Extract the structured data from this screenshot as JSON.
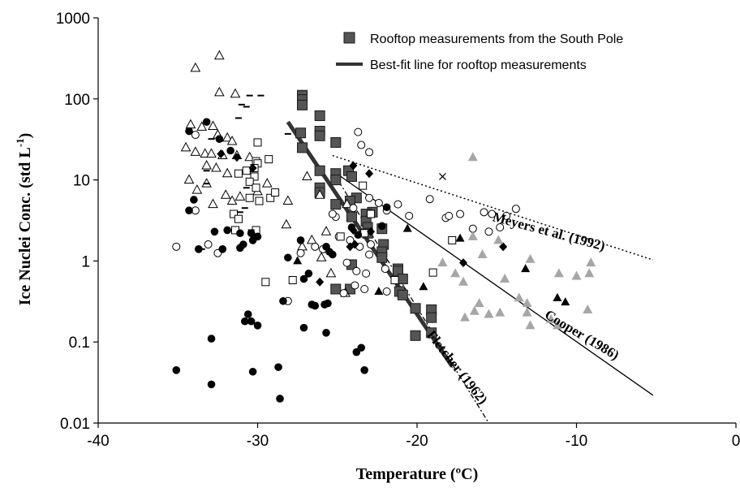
{
  "chart_data": {
    "type": "scatter",
    "xlabel": "Temperature (ºC)",
    "ylabel_main": "Ice Nuclei Conc. (std L",
    "ylabel_sup": "-1",
    "ylabel_end": ")",
    "xlim": [
      -40,
      0
    ],
    "ylim": [
      0.01,
      1000
    ],
    "y_scale": "log",
    "x_ticks": [
      {
        "value": -40,
        "label": "-40"
      },
      {
        "value": -30,
        "label": "-30"
      },
      {
        "value": -20,
        "label": "-20"
      },
      {
        "value": -10,
        "label": "-10"
      },
      {
        "value": 0,
        "label": "0"
      }
    ],
    "y_ticks": [
      {
        "value": 1000,
        "label": "1000"
      },
      {
        "value": 100,
        "label": "100"
      },
      {
        "value": 10,
        "label": "10"
      },
      {
        "value": 1,
        "label": "1"
      },
      {
        "value": 0.1,
        "label": "0.1"
      },
      {
        "value": 0.01,
        "label": "0.01"
      }
    ],
    "legend": {
      "position": "top-right",
      "entries": [
        {
          "label": "Rooftop measurements from the South Pole",
          "marker": "square"
        },
        {
          "label": "Best-fit line for rooftop measurements",
          "marker": "line"
        }
      ]
    },
    "colors": {
      "square": "#555555",
      "gray_triangle": "#a6a6a6",
      "black": "#000000",
      "best_fit": "#333333"
    },
    "lines": [
      {
        "id": "best-fit",
        "style": "thick",
        "points": [
          [
            -28.1,
            52
          ],
          [
            -17.8,
            0.05
          ]
        ]
      },
      {
        "id": "meyers",
        "style": "dotted",
        "points": [
          [
            -25.3,
            20
          ],
          [
            -5.2,
            1.03
          ]
        ],
        "label": "Meyers et al. (1992)",
        "label_at": [
          -11.8,
          2.05
        ],
        "label_angle": 15
      },
      {
        "id": "cooper",
        "style": "solid",
        "points": [
          [
            -25.3,
            13
          ],
          [
            -5.2,
            0.022
          ]
        ],
        "label": "Cooper (1986)",
        "label_at": [
          -9.8,
          0.11
        ],
        "label_angle": 31
      },
      {
        "id": "fletcher",
        "style": "dashdot",
        "points": [
          [
            -24.9,
            9.5
          ],
          [
            -15.5,
            0.01
          ]
        ],
        "label": "Fletcher (1962)",
        "label_at": [
          -17.7,
          0.045
        ],
        "label_angle": 52
      }
    ],
    "series": [
      {
        "marker": "square",
        "points": [
          [
            -27.2,
            111
          ],
          [
            -27.2,
            98
          ],
          [
            -27.2,
            84
          ],
          [
            -26.1,
            62
          ],
          [
            -27.3,
            38
          ],
          [
            -26.1,
            40
          ],
          [
            -26.1,
            35
          ],
          [
            -27.2,
            25
          ],
          [
            -25.1,
            29
          ],
          [
            -24.3,
            13
          ],
          [
            -26.1,
            13
          ],
          [
            -25.1,
            12
          ],
          [
            -25.1,
            10
          ],
          [
            -24.1,
            11
          ],
          [
            -26.1,
            8
          ],
          [
            -26.1,
            7
          ],
          [
            -23.8,
            6
          ],
          [
            -24.2,
            5.5
          ],
          [
            -25.1,
            5
          ],
          [
            -22.8,
            4
          ],
          [
            -23.2,
            3.8
          ],
          [
            -24.1,
            3.5
          ],
          [
            -23.2,
            3.1
          ],
          [
            -23.1,
            2.6
          ],
          [
            -22.2,
            2.5
          ],
          [
            -23.1,
            2.2
          ],
          [
            -22.1,
            1.6
          ],
          [
            -22.2,
            1.3
          ],
          [
            -22.2,
            1.1
          ],
          [
            -21.2,
            0.8
          ],
          [
            -21.2,
            0.75
          ],
          [
            -20.9,
            0.6
          ],
          [
            -24.1,
            0.9
          ],
          [
            -25.1,
            0.45
          ],
          [
            -24.2,
            0.45
          ],
          [
            -21.1,
            0.42
          ],
          [
            -20.9,
            0.38
          ],
          [
            -20.1,
            0.26
          ],
          [
            -19.1,
            0.25
          ],
          [
            -19.1,
            0.2
          ],
          [
            -20.1,
            0.12
          ],
          [
            -19.1,
            0.13
          ]
        ]
      },
      {
        "marker": "open-triangle",
        "points": [
          [
            -33.9,
            240
          ],
          [
            -32.4,
            340
          ],
          [
            -32.4,
            120
          ],
          [
            -31.4,
            115
          ],
          [
            -34.2,
            48
          ],
          [
            -33.5,
            45
          ],
          [
            -32.8,
            46
          ],
          [
            -32.5,
            36
          ],
          [
            -31.9,
            33
          ],
          [
            -31.6,
            30
          ],
          [
            -34.5,
            25
          ],
          [
            -33.9,
            22
          ],
          [
            -33.3,
            21
          ],
          [
            -32.9,
            21
          ],
          [
            -32.2,
            20
          ],
          [
            -31.3,
            20
          ],
          [
            -30.5,
            19
          ],
          [
            -33.2,
            15
          ],
          [
            -32.6,
            14
          ],
          [
            -31.9,
            12
          ],
          [
            -34.3,
            10
          ],
          [
            -33.2,
            9
          ],
          [
            -33.8,
            7.5
          ],
          [
            -32.0,
            6.5
          ],
          [
            -31.6,
            5.5
          ],
          [
            -32.8,
            5
          ],
          [
            -31.1,
            6.2
          ],
          [
            -29.4,
            9
          ],
          [
            -30.0,
            7.2
          ],
          [
            -28.1,
            5.5
          ],
          [
            -28.2,
            2.8
          ],
          [
            -26.9,
            11
          ],
          [
            -26.1,
            6.5
          ],
          [
            -24.4,
            5
          ],
          [
            -25.7,
            2.3
          ],
          [
            -26.6,
            1.8
          ],
          [
            -27.2,
            1.5
          ],
          [
            -26.0,
            1.1
          ],
          [
            -25.4,
            0.7
          ],
          [
            -24.5,
            0.4
          ]
        ]
      },
      {
        "marker": "open-circle",
        "points": [
          [
            -35.1,
            1.5
          ],
          [
            -33.9,
            36
          ],
          [
            -33.9,
            4.2
          ],
          [
            -33.1,
            1.6
          ],
          [
            -32.5,
            1.25
          ],
          [
            -23.7,
            39
          ],
          [
            -23.5,
            27
          ],
          [
            -23.0,
            22
          ],
          [
            -19.2,
            5.8
          ],
          [
            -21.2,
            5
          ],
          [
            -21.9,
            4.2
          ],
          [
            -22.4,
            5.2
          ],
          [
            -23.0,
            6
          ],
          [
            -24.0,
            4.5
          ],
          [
            -25.1,
            3.5
          ],
          [
            -25.3,
            3.8
          ],
          [
            -24.9,
            2
          ],
          [
            -24.2,
            1.8
          ],
          [
            -23.6,
            1.5
          ],
          [
            -22.9,
            1.6
          ],
          [
            -23.0,
            1.2
          ],
          [
            -24.4,
            0.95
          ],
          [
            -23.8,
            0.75
          ],
          [
            -23.2,
            0.7
          ],
          [
            -22.0,
            0.8
          ],
          [
            -23.9,
            0.5
          ],
          [
            -23.3,
            0.45
          ],
          [
            -24.6,
            0.4
          ],
          [
            -21.9,
            0.42
          ],
          [
            -25.9,
            1.4
          ],
          [
            -27.3,
            1.25
          ],
          [
            -28.1,
            0.32
          ],
          [
            -26.4,
            1.5
          ],
          [
            -20.5,
            3.6
          ],
          [
            -18.2,
            3.4
          ],
          [
            -18.0,
            3.6
          ],
          [
            -17.3,
            3.8
          ],
          [
            -16.5,
            2.5
          ],
          [
            -15.8,
            4
          ],
          [
            -15.3,
            3.8
          ],
          [
            -14.4,
            3.6
          ],
          [
            -13.8,
            4.4
          ],
          [
            -14.8,
            2.6
          ],
          [
            -15.5,
            2.3
          ]
        ]
      },
      {
        "marker": "open-square",
        "points": [
          [
            -30.0,
            29
          ],
          [
            -30.1,
            17
          ],
          [
            -30.0,
            16
          ],
          [
            -30.2,
            14
          ],
          [
            -30.7,
            13
          ],
          [
            -31.2,
            12
          ],
          [
            -30.2,
            11
          ],
          [
            -29.3,
            18
          ],
          [
            -30.5,
            9.5
          ],
          [
            -30.1,
            8
          ],
          [
            -30.5,
            6
          ],
          [
            -29.9,
            5.5
          ],
          [
            -31.5,
            3.8
          ],
          [
            -31.2,
            3.3
          ],
          [
            -30.1,
            2.4
          ],
          [
            -31.4,
            2.4
          ],
          [
            -29.2,
            6
          ],
          [
            -28.9,
            7
          ],
          [
            -27.8,
            0.58
          ],
          [
            -29.5,
            0.55
          ],
          [
            -22.9,
            3.8
          ],
          [
            -23.3,
            2.2
          ],
          [
            -24.8,
            2
          ],
          [
            -21.4,
            0.58
          ],
          [
            -19.0,
            0.72
          ],
          [
            -23.4,
            8.5
          ],
          [
            -17.8,
            1.8
          ]
        ]
      },
      {
        "marker": "filled-circle",
        "points": [
          [
            -34.3,
            40
          ],
          [
            -33.2,
            52
          ],
          [
            -32.4,
            32
          ],
          [
            -31.7,
            23
          ],
          [
            -34.3,
            4.2
          ],
          [
            -34.0,
            5.7
          ],
          [
            -32.7,
            2.3
          ],
          [
            -31.9,
            2.4
          ],
          [
            -31.1,
            2.2
          ],
          [
            -30.3,
            1.8
          ],
          [
            -30.4,
            2.2
          ],
          [
            -30.9,
            1.6
          ],
          [
            -31.1,
            1.45
          ],
          [
            -32.2,
            1.4
          ],
          [
            -33.7,
            1.4
          ],
          [
            -30.0,
            2.0
          ],
          [
            -27.3,
            1.8
          ],
          [
            -28.1,
            1.1
          ],
          [
            -27.1,
            0.6
          ],
          [
            -26.4,
            0.28
          ],
          [
            -25.6,
            0.3
          ],
          [
            -26.6,
            0.29
          ],
          [
            -25.8,
            0.29
          ],
          [
            -26.8,
            0.7
          ],
          [
            -25.5,
            1.3
          ],
          [
            -25.7,
            1.5
          ],
          [
            -25.3,
            1.2
          ],
          [
            -28.4,
            0.32
          ],
          [
            -30.8,
            0.18
          ],
          [
            -30.6,
            0.22
          ],
          [
            -30.4,
            0.18
          ],
          [
            -30.0,
            0.16
          ],
          [
            -32.9,
            0.11
          ],
          [
            -35.1,
            0.045
          ],
          [
            -32.9,
            0.03
          ],
          [
            -30.3,
            0.043
          ],
          [
            -28.7,
            0.049
          ],
          [
            -27.1,
            0.15
          ],
          [
            -25.7,
            0.13
          ],
          [
            -23.5,
            0.085
          ],
          [
            -23.8,
            0.075
          ],
          [
            -23.3,
            0.045
          ],
          [
            -28.6,
            0.02
          ],
          [
            -22.2,
            2.7
          ],
          [
            -21.9,
            4.6
          ],
          [
            -24.1,
            2.6
          ],
          [
            -23.7,
            2.1
          ]
        ]
      },
      {
        "marker": "filled-diamond",
        "points": [
          [
            -30.3,
            14
          ],
          [
            -31.3,
            19
          ],
          [
            -32.3,
            21
          ],
          [
            -24.0,
            15
          ],
          [
            -23.0,
            12
          ],
          [
            -22.9,
            2.3
          ],
          [
            -24.2,
            1.5
          ],
          [
            -23.9,
            1.6
          ],
          [
            -26.1,
            0.55
          ],
          [
            -17.1,
            0.95
          ],
          [
            -14.6,
            1.5
          ],
          [
            -24.0,
            2.4
          ]
        ]
      },
      {
        "marker": "filled-triangle",
        "points": [
          [
            -27.5,
            1.0
          ],
          [
            -20.6,
            2.5
          ],
          [
            -19.6,
            0.48
          ],
          [
            -22.4,
            0.42
          ],
          [
            -17.3,
            1.9
          ],
          [
            -13.2,
            0.8
          ],
          [
            -11.2,
            0.35
          ],
          [
            -10.7,
            0.31
          ]
        ]
      },
      {
        "marker": "gray-triangle",
        "points": [
          [
            -16.5,
            19
          ],
          [
            -18.4,
            0.95
          ],
          [
            -17.6,
            0.7
          ],
          [
            -17.1,
            0.55
          ],
          [
            -16.5,
            2
          ],
          [
            -15.9,
            1.2
          ],
          [
            -14.9,
            1.8
          ],
          [
            -14.5,
            0.6
          ],
          [
            -13.6,
            0.35
          ],
          [
            -12.9,
            1.05
          ],
          [
            -13.1,
            0.3
          ],
          [
            -13.1,
            0.23
          ],
          [
            -12.9,
            0.16
          ],
          [
            -16.1,
            0.3
          ],
          [
            -15.5,
            0.22
          ],
          [
            -14.8,
            0.23
          ],
          [
            -17.0,
            0.2
          ],
          [
            -16.4,
            0.24
          ],
          [
            -11.2,
            0.16
          ],
          [
            -11.6,
            0.19
          ],
          [
            -10.0,
            0.65
          ],
          [
            -9.1,
            0.95
          ],
          [
            -9.2,
            0.7
          ],
          [
            -9.3,
            0.25
          ],
          [
            -11.1,
            0.7
          ]
        ]
      },
      {
        "marker": "dash",
        "points": [
          [
            -32.9,
            32
          ],
          [
            -31.2,
            58
          ],
          [
            -31.0,
            85
          ],
          [
            -30.7,
            80
          ],
          [
            -29.8,
            110
          ],
          [
            -30.5,
            110
          ],
          [
            -28.1,
            37
          ],
          [
            -33.2,
            13
          ],
          [
            -33.2,
            9
          ],
          [
            -30.7,
            8
          ],
          [
            -30.8,
            4.5
          ],
          [
            -31.1,
            4
          ],
          [
            -30.4,
            2.4
          ],
          [
            -33.5,
            1.4
          ]
        ]
      },
      {
        "marker": "cross",
        "points": [
          [
            -18.4,
            11
          ]
        ]
      }
    ]
  }
}
